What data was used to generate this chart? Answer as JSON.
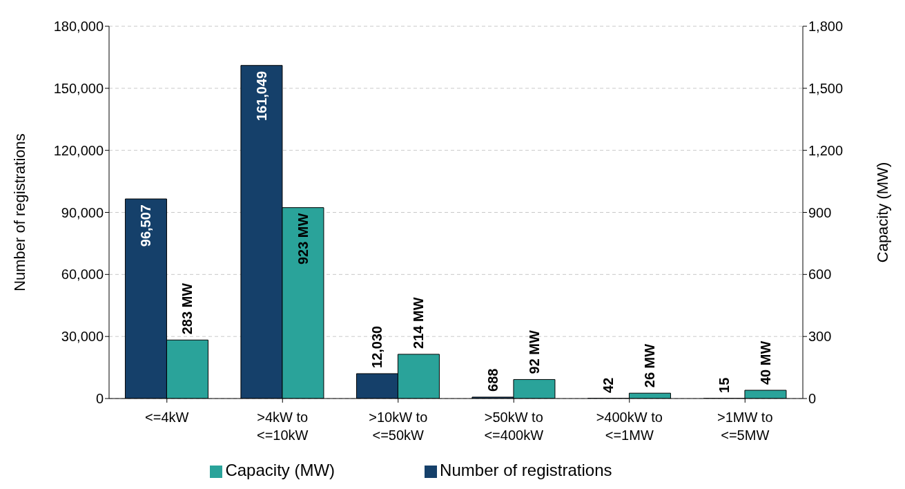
{
  "chart_data": {
    "type": "bar",
    "ylabel": "Number of registrations",
    "y2label": "Capacity (MW)",
    "categories": [
      "<=4kW",
      ">4kW to <=10kW",
      ">10kW to <=50kW",
      ">50kW to <=400kW",
      ">400kW to <=1MW",
      ">1MW to <=5MW"
    ],
    "series": [
      {
        "name": "Number of registrations",
        "color": "#15406a",
        "values": [
          96507,
          161049,
          12030,
          688,
          42,
          15
        ],
        "value_labels": [
          "96,507",
          "161,049",
          "12,030",
          "688",
          "42",
          "15"
        ]
      },
      {
        "name": "Capacity (MW)",
        "color": "#2aa39a",
        "axis": "y2",
        "values": [
          283,
          923,
          214,
          92,
          26,
          40
        ],
        "value_labels": [
          "283 MW",
          "923 MW",
          "214 MW",
          "92 MW",
          "26 MW",
          "40 MW"
        ]
      }
    ],
    "ylim": [
      0,
      180000
    ],
    "yticks": [
      {
        "value": 0,
        "label": "0"
      },
      {
        "value": 30000,
        "label": "30,000"
      },
      {
        "value": 60000,
        "label": "60,000"
      },
      {
        "value": 90000,
        "label": "90,000"
      },
      {
        "value": 120000,
        "label": "120,000"
      },
      {
        "value": 150000,
        "label": "150,000"
      },
      {
        "value": 180000,
        "label": "180,000"
      }
    ],
    "y2lim": [
      0,
      1800
    ],
    "y2ticks": [
      {
        "value": 0,
        "label": "0"
      },
      {
        "value": 300,
        "label": "300"
      },
      {
        "value": 600,
        "label": "600"
      },
      {
        "value": 900,
        "label": "900"
      },
      {
        "value": 1200,
        "label": "1,200"
      },
      {
        "value": 1500,
        "label": "1,500"
      },
      {
        "value": 1800,
        "label": "1,800"
      }
    ],
    "grid": "y",
    "legend": "bottom"
  }
}
